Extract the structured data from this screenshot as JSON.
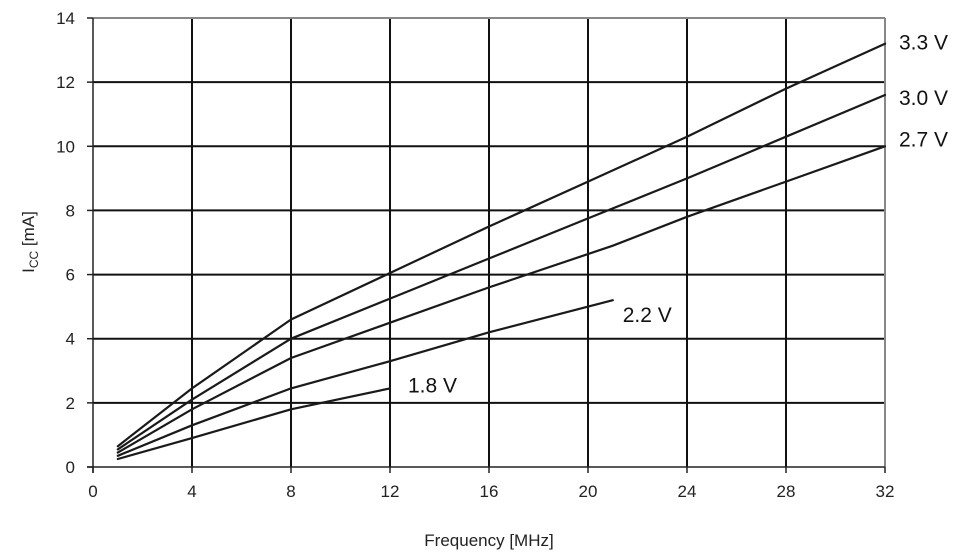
{
  "chart_data": {
    "type": "line",
    "title": "",
    "xlabel": "Frequency [MHz]",
    "ylabel": "I",
    "ylabel_subscript": "CC",
    "ylabel_unit": " [mA]",
    "xlim": [
      0,
      32
    ],
    "ylim": [
      0,
      14
    ],
    "x_ticks": [
      0,
      4,
      8,
      12,
      16,
      20,
      24,
      28,
      32
    ],
    "y_ticks": [
      0,
      2,
      4,
      6,
      8,
      10,
      12,
      14
    ],
    "grid": true,
    "legend": "none",
    "series": [
      {
        "name": "3.3 V",
        "x": [
          1,
          4,
          8,
          12,
          16,
          20,
          24,
          28,
          32
        ],
        "y": [
          0.65,
          2.45,
          4.6,
          6.05,
          7.5,
          8.9,
          10.3,
          11.8,
          13.2
        ]
      },
      {
        "name": "3.0 V",
        "x": [
          1,
          4,
          8,
          12,
          16,
          20,
          24,
          28,
          32
        ],
        "y": [
          0.55,
          2.1,
          4.0,
          5.25,
          6.5,
          7.75,
          9.0,
          10.3,
          11.6
        ]
      },
      {
        "name": "2.7 V",
        "x": [
          1,
          4,
          8,
          12,
          16,
          21,
          24,
          28,
          32
        ],
        "y": [
          0.45,
          1.8,
          3.4,
          4.5,
          5.6,
          6.9,
          7.8,
          8.9,
          10.0
        ]
      },
      {
        "name": "2.2 V",
        "x": [
          1,
          4,
          8,
          12,
          16,
          21
        ],
        "y": [
          0.35,
          1.3,
          2.45,
          3.3,
          4.2,
          5.2
        ]
      },
      {
        "name": "1.8 V",
        "x": [
          1,
          4,
          8,
          12
        ],
        "y": [
          0.25,
          0.9,
          1.8,
          2.45
        ]
      }
    ],
    "line_color": "#1a1a1a",
    "grid_color": "#111111",
    "frame_color": "#888888"
  }
}
